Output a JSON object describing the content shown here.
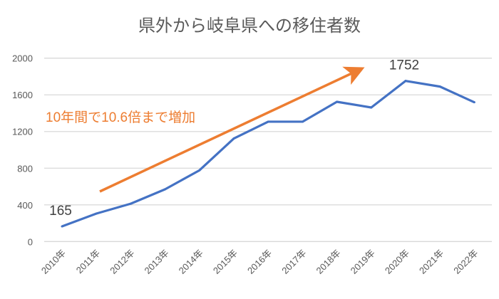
{
  "chart_data": {
    "type": "line",
    "title": "県外から岐阜県への移住者数",
    "xlabel": "",
    "ylabel": "",
    "categories": [
      "2010年",
      "2011年",
      "2012年",
      "2013年",
      "2014年",
      "2015年",
      "2016年",
      "2017年",
      "2018年",
      "2019年",
      "2020年",
      "2021年",
      "2022年"
    ],
    "series": [
      {
        "name": "移住者数",
        "color": "#4472C4",
        "values": [
          165,
          305,
          413,
          570,
          777,
          1124,
          1307,
          1307,
          1524,
          1462,
          1752,
          1690,
          1519
        ]
      }
    ],
    "ylim": [
      0,
      2000
    ],
    "yticks": [
      0,
      400,
      800,
      1200,
      1600,
      2000
    ],
    "grid": true,
    "data_labels": [
      {
        "index": 0,
        "text": "165"
      },
      {
        "index": 10,
        "text": "1752"
      }
    ],
    "annotation": {
      "text": "10年間で10.6倍まで増加",
      "color": "#ED7D31",
      "arrow": "upward trend arrow"
    }
  }
}
